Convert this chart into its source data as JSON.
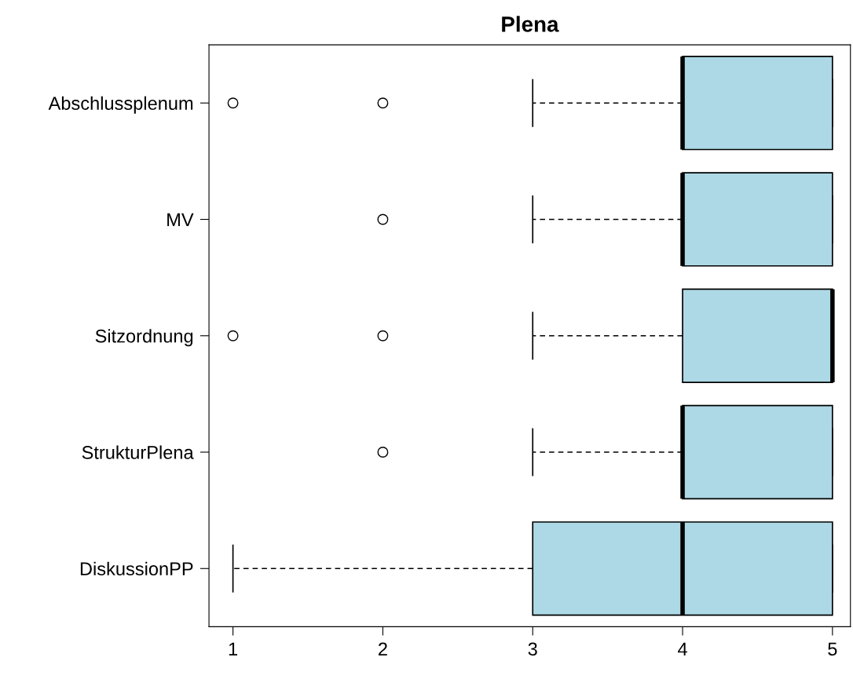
{
  "chart_data": {
    "type": "box",
    "title": "Plena",
    "orientation": "horizontal",
    "categories": [
      "Abschlussplenum",
      "MV",
      "Sitzordnung",
      "StrukturPlena",
      "DiskussionPP"
    ],
    "boxes": [
      {
        "low": 3,
        "q1": 4,
        "median": 4,
        "q3": 5,
        "high": 5,
        "outliers": [
          1,
          2
        ]
      },
      {
        "low": 3,
        "q1": 4,
        "median": 4,
        "q3": 5,
        "high": 5,
        "outliers": [
          2
        ]
      },
      {
        "low": 3,
        "q1": 4,
        "median": 5,
        "q3": 5,
        "high": 5,
        "outliers": [
          1,
          2
        ]
      },
      {
        "low": 3,
        "q1": 4,
        "median": 4,
        "q3": 5,
        "high": 5,
        "outliers": [
          2
        ]
      },
      {
        "low": 1,
        "q1": 3,
        "median": 4,
        "q3": 5,
        "high": 5
      }
    ],
    "color": "#add8e6",
    "xlim": [
      0.84,
      5.12
    ],
    "xticks": [
      1,
      2,
      3,
      4,
      5
    ],
    "grid": false,
    "legend": false
  }
}
